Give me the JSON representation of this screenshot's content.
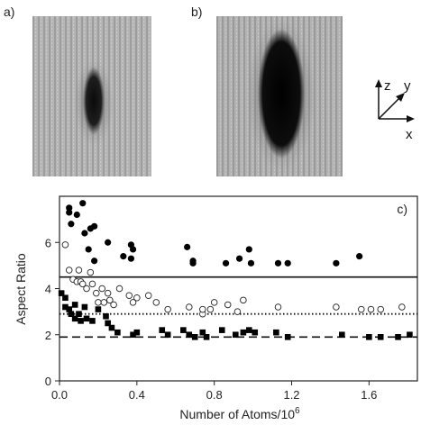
{
  "panels": {
    "a_label": "a)",
    "b_label": "b)",
    "c_label": "c)"
  },
  "axes_glyph": {
    "z": "z",
    "y": "y",
    "x": "x"
  },
  "chart_data": {
    "type": "scatter",
    "xlabel": "Number of Atoms/10",
    "xlabel_superscript": "6",
    "ylabel": "Aspect Ratio",
    "xlim": [
      0,
      1.85
    ],
    "ylim": [
      0,
      8
    ],
    "xticks": [
      0.0,
      0.4,
      0.8,
      1.2,
      1.6
    ],
    "xtick_labels": [
      "0.0",
      "0.4",
      "0.8",
      "1.2",
      "1.6"
    ],
    "yticks": [
      0,
      2,
      4,
      6
    ],
    "ytick_labels": [
      "0",
      "2",
      "4",
      "6"
    ],
    "grid": false,
    "hlines": [
      {
        "y": 4.5,
        "style": "solid"
      },
      {
        "y": 2.9,
        "style": "dotted"
      },
      {
        "y": 1.9,
        "style": "dashed"
      }
    ],
    "series": [
      {
        "marker": "filled-circle",
        "points": [
          [
            0.05,
            7.5
          ],
          [
            0.05,
            7.3
          ],
          [
            0.06,
            6.8
          ],
          [
            0.09,
            7.2
          ],
          [
            0.12,
            7.7
          ],
          [
            0.13,
            6.4
          ],
          [
            0.16,
            6.6
          ],
          [
            0.18,
            6.7
          ],
          [
            0.15,
            5.7
          ],
          [
            0.18,
            5.2
          ],
          [
            0.25,
            6.0
          ],
          [
            0.33,
            5.4
          ],
          [
            0.37,
            5.9
          ],
          [
            0.38,
            5.7
          ],
          [
            0.37,
            5.3
          ],
          [
            0.66,
            5.8
          ],
          [
            0.69,
            5.2
          ],
          [
            0.69,
            5.1
          ],
          [
            0.86,
            5.1
          ],
          [
            0.93,
            5.3
          ],
          [
            0.98,
            5.7
          ],
          [
            0.99,
            5.1
          ],
          [
            1.13,
            5.1
          ],
          [
            1.18,
            5.1
          ],
          [
            1.43,
            5.1
          ],
          [
            1.55,
            5.4
          ]
        ]
      },
      {
        "marker": "open-circle",
        "points": [
          [
            0.03,
            5.9
          ],
          [
            0.05,
            4.8
          ],
          [
            0.07,
            4.4
          ],
          [
            0.09,
            4.3
          ],
          [
            0.1,
            4.8
          ],
          [
            0.11,
            4.3
          ],
          [
            0.12,
            4.2
          ],
          [
            0.14,
            4.0
          ],
          [
            0.16,
            4.7
          ],
          [
            0.17,
            4.2
          ],
          [
            0.19,
            3.8
          ],
          [
            0.2,
            3.4
          ],
          [
            0.22,
            4.0
          ],
          [
            0.23,
            3.4
          ],
          [
            0.25,
            3.8
          ],
          [
            0.26,
            3.5
          ],
          [
            0.28,
            3.3
          ],
          [
            0.31,
            4.0
          ],
          [
            0.36,
            3.7
          ],
          [
            0.38,
            3.4
          ],
          [
            0.4,
            3.6
          ],
          [
            0.46,
            3.7
          ],
          [
            0.5,
            3.4
          ],
          [
            0.56,
            3.1
          ],
          [
            0.67,
            3.2
          ],
          [
            0.74,
            2.9
          ],
          [
            0.74,
            3.1
          ],
          [
            0.78,
            3.1
          ],
          [
            0.8,
            3.4
          ],
          [
            0.87,
            3.3
          ],
          [
            0.92,
            3.0
          ],
          [
            0.95,
            3.5
          ],
          [
            1.13,
            3.2
          ],
          [
            1.43,
            3.2
          ],
          [
            1.56,
            3.1
          ],
          [
            1.61,
            3.1
          ],
          [
            1.66,
            3.1
          ],
          [
            1.77,
            3.2
          ]
        ]
      },
      {
        "marker": "filled-square",
        "points": [
          [
            0.01,
            3.8
          ],
          [
            0.03,
            3.6
          ],
          [
            0.03,
            3.2
          ],
          [
            0.05,
            3.1
          ],
          [
            0.06,
            2.9
          ],
          [
            0.08,
            3.3
          ],
          [
            0.08,
            2.7
          ],
          [
            0.1,
            2.9
          ],
          [
            0.11,
            2.6
          ],
          [
            0.13,
            3.2
          ],
          [
            0.14,
            2.7
          ],
          [
            0.17,
            2.6
          ],
          [
            0.2,
            3.1
          ],
          [
            0.24,
            2.8
          ],
          [
            0.25,
            2.5
          ],
          [
            0.27,
            2.3
          ],
          [
            0.3,
            2.1
          ],
          [
            0.38,
            2.0
          ],
          [
            0.4,
            2.1
          ],
          [
            0.53,
            2.2
          ],
          [
            0.56,
            2.0
          ],
          [
            0.64,
            2.2
          ],
          [
            0.67,
            2.0
          ],
          [
            0.7,
            1.9
          ],
          [
            0.74,
            2.1
          ],
          [
            0.76,
            1.9
          ],
          [
            0.84,
            2.2
          ],
          [
            0.91,
            2.0
          ],
          [
            0.95,
            2.1
          ],
          [
            0.98,
            2.2
          ],
          [
            1.01,
            2.1
          ],
          [
            1.12,
            2.1
          ],
          [
            1.18,
            1.9
          ],
          [
            1.46,
            2.0
          ],
          [
            1.6,
            1.9
          ],
          [
            1.66,
            1.9
          ],
          [
            1.75,
            1.9
          ],
          [
            1.81,
            2.0
          ]
        ]
      }
    ]
  }
}
